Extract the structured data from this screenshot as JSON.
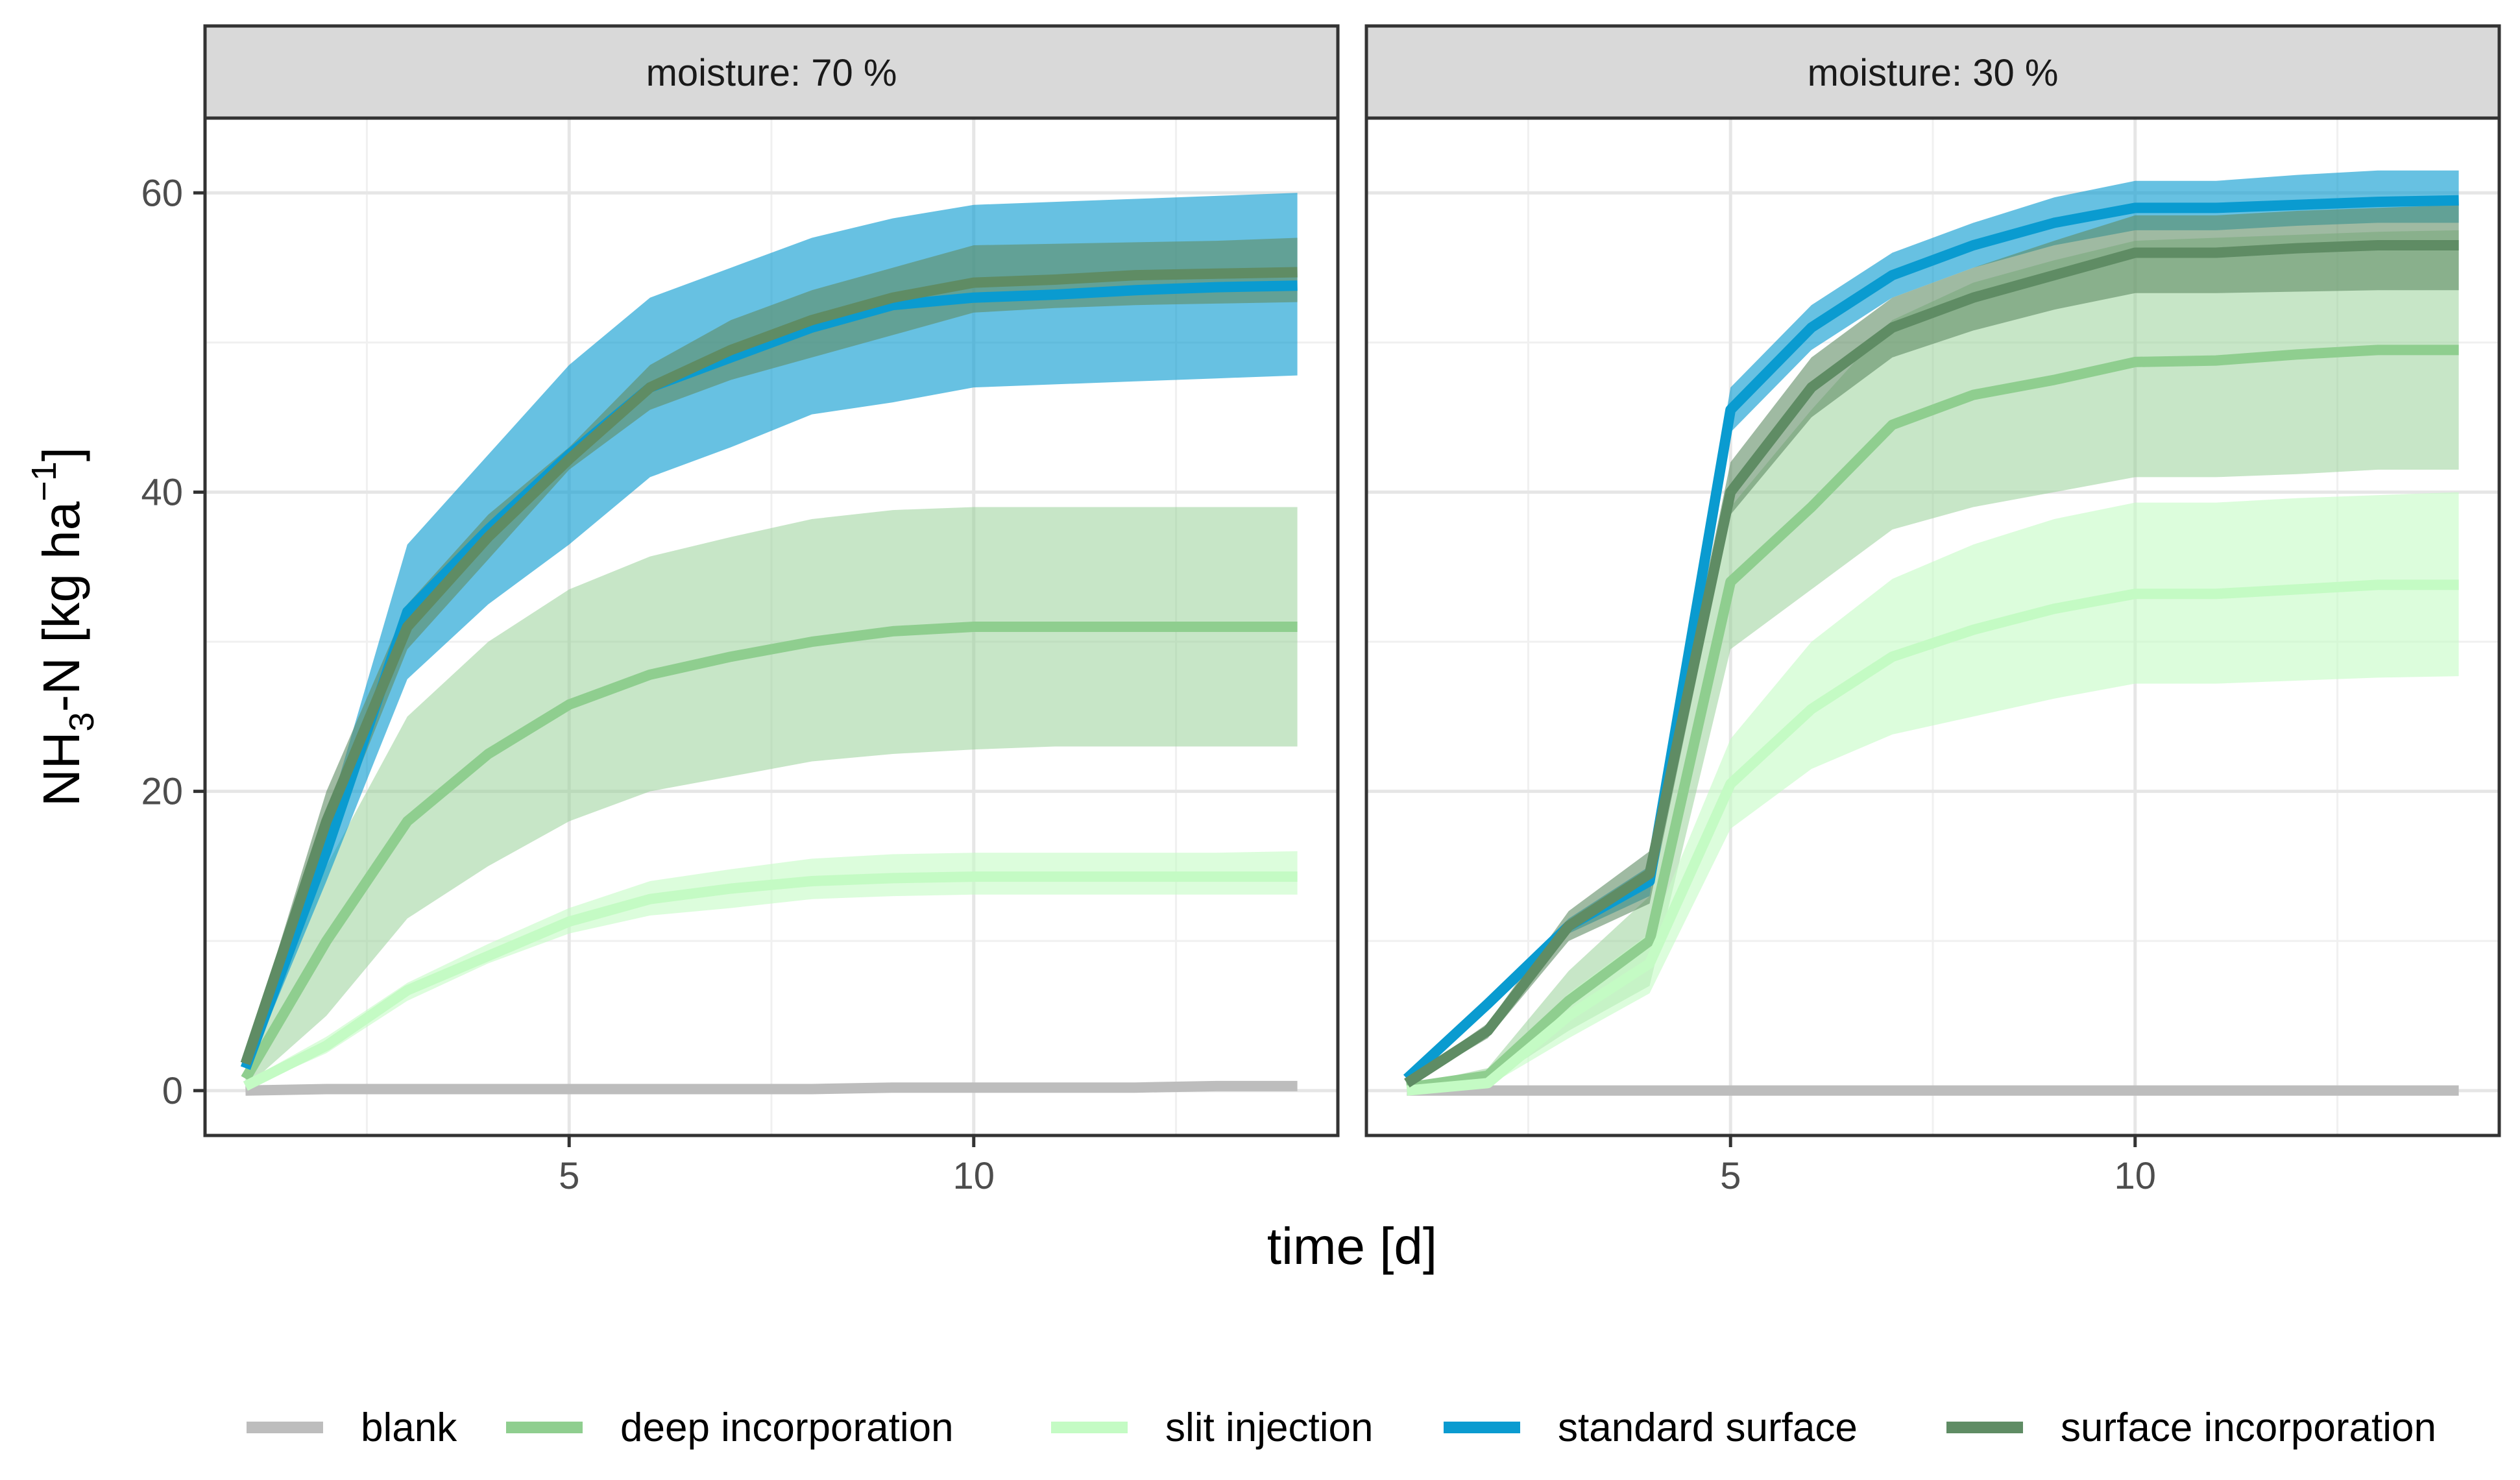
{
  "chart_data": {
    "type": "line",
    "subtype": "ribbon",
    "facet_variable": "moisture",
    "xlabel": "time [d]",
    "ylabel": {
      "prefix": "NH",
      "subscript": "3",
      "middle": "-N [kg ha",
      "superscript": "−1",
      "suffix": "]"
    },
    "xlim": [
      0.5,
      14.5
    ],
    "ylim": [
      -3,
      65
    ],
    "x_ticks": [
      5,
      10
    ],
    "y_ticks": [
      0,
      20,
      40,
      60
    ],
    "legend_position": "bottom",
    "legend": [
      "blank",
      "deep incorporation",
      "slit injection",
      "standard surface",
      "surface incorporation"
    ],
    "colors": {
      "blank": "#bdbdbd",
      "deep incorporation": "#8fce8f",
      "slit injection": "#c4fbc4",
      "standard surface": "#0a9bd0",
      "surface incorporation": "#5f8c64"
    },
    "panels": [
      {
        "label": "moisture: 70 %",
        "series": [
          {
            "name": "blank",
            "x": [
              1,
              2,
              3,
              4,
              5,
              6,
              7,
              8,
              9,
              10,
              11,
              12,
              13,
              14
            ],
            "mean": [
              0,
              0.1,
              0.1,
              0.1,
              0.1,
              0.1,
              0.1,
              0.1,
              0.2,
              0.2,
              0.2,
              0.2,
              0.3,
              0.3
            ],
            "lower": [
              0,
              0.1,
              0.1,
              0.1,
              0.1,
              0.1,
              0.1,
              0.1,
              0.2,
              0.2,
              0.2,
              0.2,
              0.3,
              0.3
            ],
            "upper": [
              0,
              0.1,
              0.1,
              0.1,
              0.1,
              0.1,
              0.1,
              0.1,
              0.2,
              0.2,
              0.2,
              0.2,
              0.3,
              0.3
            ]
          },
          {
            "name": "deep incorporation",
            "x": [
              1,
              2,
              3,
              4,
              5,
              6,
              7,
              8,
              9,
              10,
              11,
              12,
              13,
              14
            ],
            "mean": [
              0.8,
              10,
              18,
              22.5,
              25.8,
              27.8,
              29,
              30,
              30.7,
              31,
              31,
              31,
              31,
              31
            ],
            "lower": [
              0.2,
              5,
              11.5,
              15,
              18,
              20,
              21,
              22,
              22.5,
              22.8,
              23,
              23,
              23,
              23
            ],
            "upper": [
              1.5,
              15,
              25,
              30,
              33.5,
              35.7,
              37,
              38.2,
              38.8,
              39,
              39,
              39,
              39,
              39
            ]
          },
          {
            "name": "slit injection",
            "x": [
              1,
              2,
              3,
              4,
              5,
              6,
              7,
              8,
              9,
              10,
              11,
              12,
              13,
              14
            ],
            "mean": [
              0.3,
              3,
              6.7,
              9,
              11.3,
              12.8,
              13.5,
              14,
              14.2,
              14.3,
              14.3,
              14.3,
              14.3,
              14.3
            ],
            "lower": [
              0.1,
              2.5,
              6,
              8.5,
              10.5,
              11.7,
              12.2,
              12.8,
              13,
              13.1,
              13.1,
              13.1,
              13.1,
              13.1
            ],
            "upper": [
              0.6,
              3.6,
              7.2,
              9.8,
              12.2,
              14,
              14.8,
              15.5,
              15.8,
              15.9,
              15.9,
              15.9,
              15.9,
              16
            ]
          },
          {
            "name": "standard surface",
            "x": [
              1,
              2,
              3,
              4,
              5,
              6,
              7,
              8,
              9,
              10,
              11,
              12,
              13,
              14
            ],
            "mean": [
              1.5,
              16,
              32,
              37.5,
              42.5,
              47,
              49,
              51,
              52.5,
              53,
              53.2,
              53.5,
              53.7,
              53.8
            ],
            "lower": [
              1,
              14,
              27.5,
              32.5,
              36.5,
              41,
              43,
              45.2,
              46,
              47,
              47.2,
              47.4,
              47.6,
              47.8
            ],
            "upper": [
              2,
              18,
              36.5,
              42.5,
              48.5,
              53,
              55,
              57,
              58.3,
              59.2,
              59.4,
              59.6,
              59.8,
              60
            ]
          },
          {
            "name": "surface incorporation",
            "x": [
              1,
              2,
              3,
              4,
              5,
              6,
              7,
              8,
              9,
              10,
              11,
              12,
              13,
              14
            ],
            "mean": [
              1.8,
              18,
              31,
              37,
              42.2,
              47,
              49.5,
              51.5,
              53,
              54,
              54.2,
              54.5,
              54.6,
              54.7
            ],
            "lower": [
              1.2,
              16,
              29.5,
              35.5,
              41.5,
              45.5,
              47.5,
              49,
              50.5,
              52,
              52.3,
              52.5,
              52.6,
              52.7
            ],
            "upper": [
              2.3,
              20,
              32.5,
              38.5,
              43,
              48.5,
              51.5,
              53.5,
              55,
              56.5,
              56.6,
              56.7,
              56.8,
              57
            ]
          }
        ]
      },
      {
        "label": "moisture: 30 %",
        "series": [
          {
            "name": "blank",
            "x": [
              1,
              2,
              3,
              4,
              5,
              6,
              7,
              8,
              9,
              10,
              11,
              12,
              13,
              14
            ],
            "mean": [
              0,
              0,
              0,
              0,
              0,
              0,
              0,
              0,
              0,
              0,
              0,
              0,
              0,
              0
            ],
            "lower": [
              0,
              0,
              0,
              0,
              0,
              0,
              0,
              0,
              0,
              0,
              0,
              0,
              0,
              0
            ],
            "upper": [
              0,
              0,
              0,
              0,
              0,
              0,
              0,
              0,
              0,
              0,
              0,
              0,
              0,
              0
            ]
          },
          {
            "name": "deep incorporation",
            "x": [
              1,
              2,
              3,
              4,
              5,
              6,
              7,
              8,
              9,
              10,
              11,
              12,
              13,
              14
            ],
            "mean": [
              0.2,
              1,
              6,
              10,
              34,
              39,
              44.5,
              46.5,
              47.5,
              48.7,
              48.8,
              49.2,
              49.5,
              49.5
            ],
            "lower": [
              0.1,
              0.5,
              4,
              7,
              29.5,
              33.5,
              37.5,
              39,
              40,
              41,
              41,
              41.2,
              41.5,
              41.5
            ],
            "upper": [
              0.3,
              1.5,
              8,
              13,
              39,
              45.5,
              51.5,
              54,
              55.5,
              56.8,
              57,
              57.2,
              57.4,
              57.5
            ]
          },
          {
            "name": "slit injection",
            "x": [
              1,
              2,
              3,
              4,
              5,
              6,
              7,
              8,
              9,
              10,
              11,
              12,
              13,
              14
            ],
            "mean": [
              0,
              0.5,
              5,
              8.5,
              20.5,
              25.5,
              29,
              30.8,
              32.2,
              33.2,
              33.2,
              33.5,
              33.8,
              33.8
            ],
            "lower": [
              0,
              0.3,
              3.5,
              6.5,
              17.5,
              21.5,
              23.8,
              25,
              26.2,
              27.2,
              27.2,
              27.4,
              27.6,
              27.7
            ],
            "upper": [
              0,
              0.7,
              6.5,
              10.5,
              23.5,
              30,
              34.2,
              36.5,
              38.2,
              39.3,
              39.3,
              39.6,
              39.8,
              40
            ]
          },
          {
            "name": "standard surface",
            "x": [
              1,
              2,
              3,
              4,
              5,
              6,
              7,
              8,
              9,
              10,
              11,
              12,
              13,
              14
            ],
            "mean": [
              0.8,
              5.8,
              11,
              14,
              45.5,
              51,
              54.5,
              56.5,
              58,
              59,
              59,
              59.2,
              59.4,
              59.5
            ],
            "lower": [
              0.6,
              5.5,
              10.5,
              13,
              44,
              49.5,
              53,
              55,
              56.5,
              57.5,
              57.5,
              57.8,
              58,
              58
            ],
            "upper": [
              1,
              6.2,
              11.5,
              15,
              47,
              52.5,
              56,
              58,
              59.7,
              60.8,
              60.8,
              61.2,
              61.5,
              61.5
            ]
          },
          {
            "name": "surface incorporation",
            "x": [
              1,
              2,
              3,
              4,
              5,
              6,
              7,
              8,
              9,
              10,
              11,
              12,
              13,
              14
            ],
            "mean": [
              0.5,
              4,
              11,
              14.5,
              40,
              47,
              51,
              53,
              54.5,
              56,
              56,
              56.3,
              56.5,
              56.5
            ],
            "lower": [
              0.3,
              3.5,
              10,
              12.5,
              38.5,
              45,
              49,
              50.8,
              52.2,
              53.3,
              53.3,
              53.4,
              53.5,
              53.5
            ],
            "upper": [
              0.7,
              4.5,
              12,
              16,
              42,
              49,
              53,
              55,
              56.8,
              58.5,
              58.5,
              58.8,
              59,
              59.2
            ]
          }
        ]
      }
    ]
  }
}
